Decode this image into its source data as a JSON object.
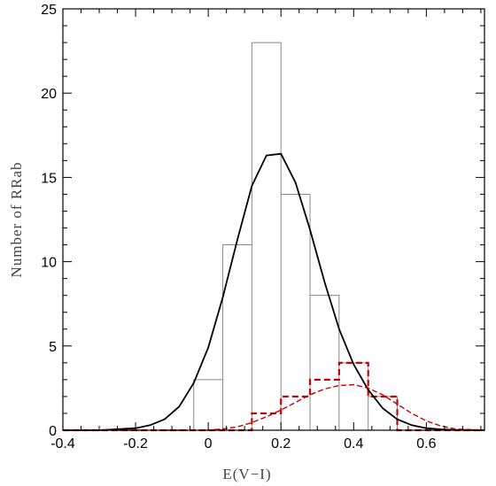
{
  "chart_data": {
    "type": "histogram",
    "xlabel": "E(V−I)",
    "ylabel": "Number of RRab",
    "xlim": [
      -0.4,
      0.76
    ],
    "ylim": [
      0,
      25
    ],
    "xticks": [
      -0.4,
      -0.2,
      0,
      0.2,
      0.4,
      0.6
    ],
    "xtick_labels": [
      "-0.4",
      "-0.2",
      "0",
      "0.2",
      "0.4",
      "0.6"
    ],
    "yticks": [
      0,
      5,
      10,
      15,
      20,
      25
    ],
    "ytick_labels": [
      "0",
      "5",
      "10",
      "15",
      "20",
      "25"
    ],
    "grid": false,
    "legend": "none",
    "bin_edges": [
      -0.4,
      -0.36,
      -0.28,
      -0.2,
      -0.12,
      -0.04,
      0.04,
      0.12,
      0.2,
      0.28,
      0.36,
      0.44,
      0.52,
      0.6,
      0.68,
      0.76
    ],
    "series": [
      {
        "style": "step",
        "color": "#888888",
        "counts": [
          0,
          0,
          0,
          0,
          0,
          3,
          11,
          23,
          14,
          8,
          4,
          2,
          0,
          0,
          0
        ]
      },
      {
        "style": "step-dashed",
        "color": "#cc0000",
        "counts": [
          0,
          0,
          0,
          0,
          0,
          0,
          0,
          1,
          2,
          3,
          4,
          2,
          0,
          0,
          0
        ]
      },
      {
        "style": "line",
        "color": "#000000",
        "x": [
          -0.4,
          -0.3,
          -0.2,
          -0.16,
          -0.12,
          -0.08,
          -0.04,
          0.0,
          0.04,
          0.08,
          0.12,
          0.16,
          0.2,
          0.24,
          0.28,
          0.32,
          0.36,
          0.4,
          0.44,
          0.48,
          0.52,
          0.56,
          0.6,
          0.64,
          0.68,
          0.72,
          0.76
        ],
        "y": [
          0,
          0,
          0.12,
          0.3,
          0.65,
          1.4,
          2.8,
          4.9,
          7.9,
          11.3,
          14.5,
          16.3,
          16.4,
          14.7,
          11.9,
          8.8,
          6.0,
          3.9,
          2.4,
          1.3,
          0.65,
          0.3,
          0.12,
          0.05,
          0.02,
          0.01,
          0
        ]
      },
      {
        "style": "line-dashed",
        "color": "#cc0000",
        "x": [
          -0.4,
          0.0,
          0.04,
          0.08,
          0.12,
          0.16,
          0.2,
          0.24,
          0.28,
          0.32,
          0.36,
          0.4,
          0.44,
          0.48,
          0.52,
          0.56,
          0.6,
          0.64,
          0.68,
          0.76
        ],
        "y": [
          0,
          0,
          0.08,
          0.2,
          0.45,
          0.8,
          1.2,
          1.65,
          2.1,
          2.45,
          2.65,
          2.7,
          2.5,
          2.1,
          1.55,
          1.0,
          0.55,
          0.25,
          0.08,
          0
        ]
      }
    ]
  }
}
